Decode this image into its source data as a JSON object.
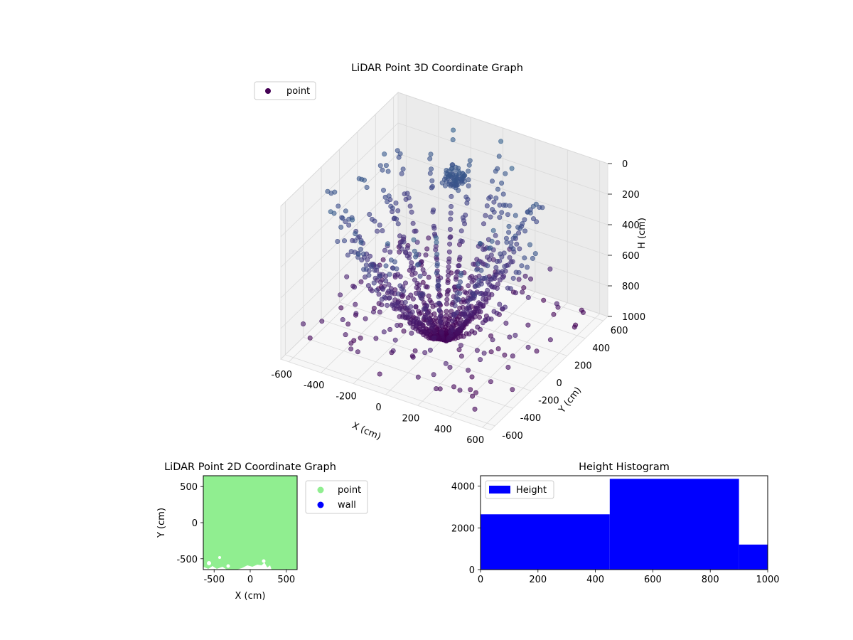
{
  "chart_data": [
    {
      "type": "scatter",
      "projection": "3d",
      "title": "LiDAR Point 3D Coordinate Graph",
      "xlabel": "X (cm)",
      "ylabel": "Y (cm)",
      "zlabel": "H (cm)",
      "xlim": [
        -650,
        650
      ],
      "ylim": [
        -650,
        650
      ],
      "zlim": [
        1000,
        0
      ],
      "x_ticks": [
        "-600",
        "-400",
        "-200",
        "0",
        "200",
        "400",
        "600"
      ],
      "y_ticks": [
        "-600",
        "-400",
        "-200",
        "0",
        "200",
        "400",
        "600"
      ],
      "z_ticks": [
        "0",
        "200",
        "400",
        "600",
        "800",
        "1000"
      ],
      "colormap": "viridis (colored by H)",
      "legend": {
        "position": "upper left",
        "entries": [
          {
            "label": "point",
            "color": "#440154"
          }
        ]
      },
      "grid": true,
      "structure": "point rows arranged radially around origin (0,0) at H≈1000, rising outward toward H≈0; one dense cluster near X≈-100, Y≈300, H≈150"
    },
    {
      "type": "scatter",
      "title": "LiDAR Point 2D Coordinate Graph",
      "xlabel": "X (cm)",
      "ylabel": "Y (cm)",
      "xlim": [
        -650,
        650
      ],
      "ylim": [
        -650,
        650
      ],
      "x_ticks": [
        "-500",
        "0",
        "500"
      ],
      "y_ticks": [
        "-500",
        "0",
        "500"
      ],
      "series": [
        {
          "name": "point",
          "color": "#90ee90",
          "coverage": "fills nearly the whole square"
        },
        {
          "name": "wall",
          "color": "#0000ff",
          "coverage": "none visible"
        }
      ],
      "legend": {
        "position": "outside right",
        "entries": [
          {
            "label": "point",
            "color": "#90ee90"
          },
          {
            "label": "wall",
            "color": "#0000ff"
          }
        ]
      }
    },
    {
      "type": "bar",
      "subtype": "histogram",
      "title": "Height Histogram",
      "bins": [
        {
          "from": 0,
          "to": 450,
          "count": 2650
        },
        {
          "from": 450,
          "to": 900,
          "count": 4350
        },
        {
          "from": 900,
          "to": 1000,
          "count": 1200
        }
      ],
      "xlim": [
        0,
        1000
      ],
      "ylim": [
        0,
        4500
      ],
      "x_ticks": [
        "0",
        "200",
        "400",
        "600",
        "800",
        "1000"
      ],
      "y_ticks": [
        "0",
        "2000",
        "4000"
      ],
      "series": [
        {
          "name": "Height",
          "color": "#0000ff"
        }
      ],
      "legend": {
        "position": "upper left",
        "entries": [
          {
            "label": "Height",
            "color": "#0000ff"
          }
        ]
      }
    }
  ]
}
